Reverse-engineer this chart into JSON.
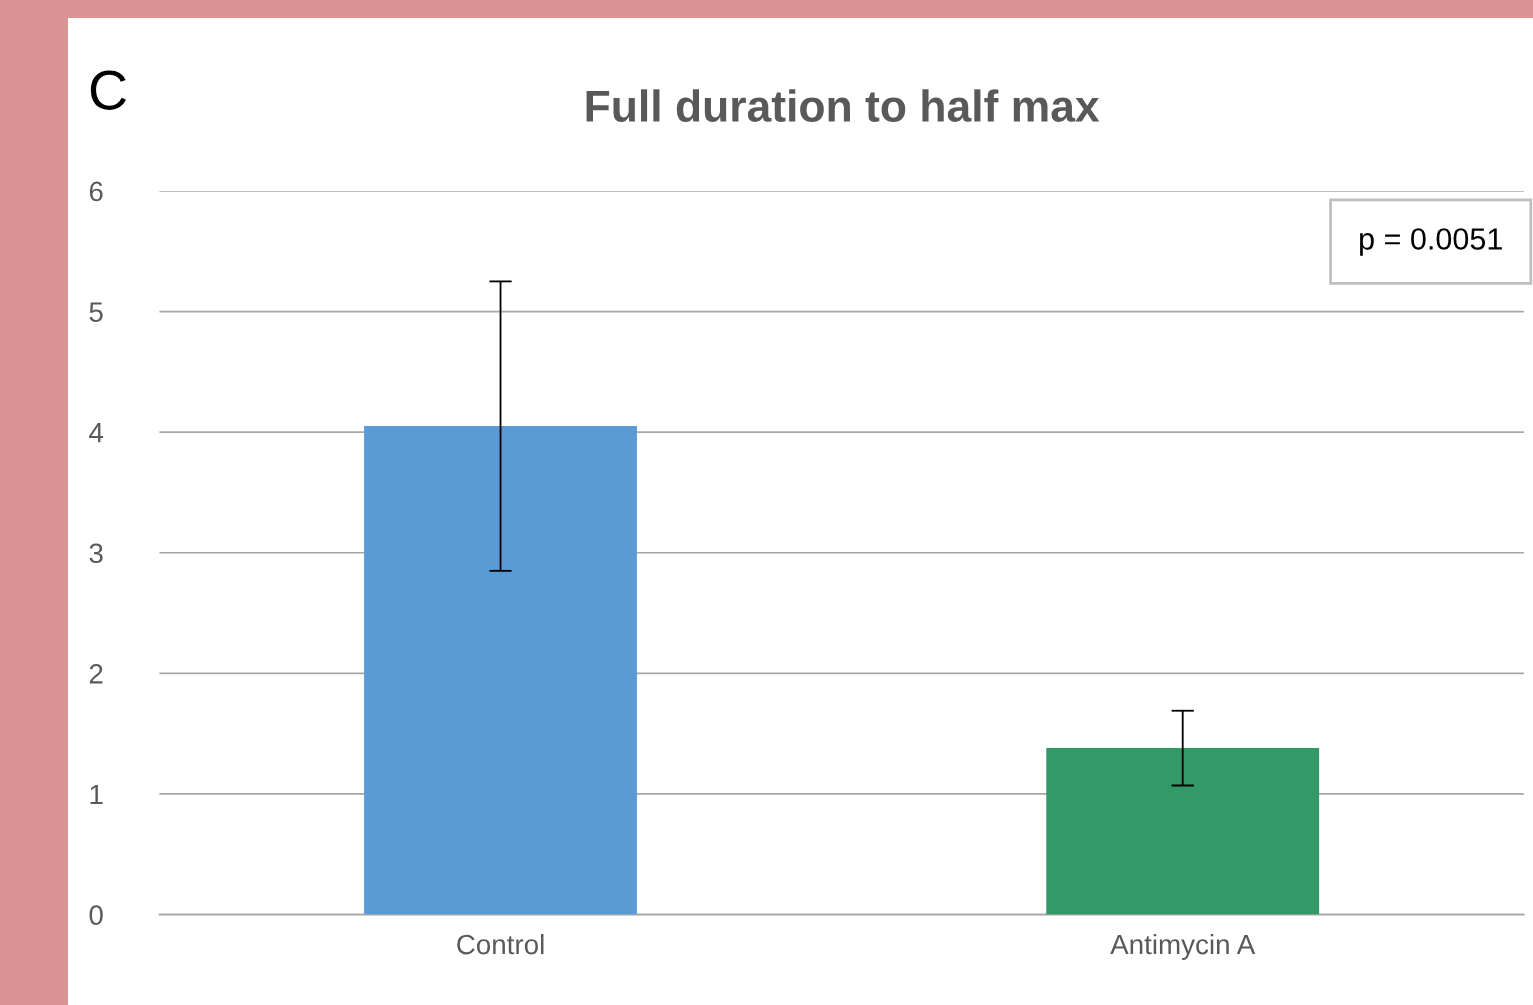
{
  "chart_data": {
    "type": "bar",
    "title": "Full duration to half max",
    "categories": [
      "Control",
      "Antimycin A"
    ],
    "values": [
      4.05,
      1.38
    ],
    "errors": [
      1.2,
      0.31
    ],
    "colors": [
      "#5b9bd5",
      "#339966"
    ],
    "ylim": [
      0,
      6
    ],
    "yticks": [
      0,
      1,
      2,
      3,
      4,
      5,
      6
    ],
    "grid": "y",
    "legend": false,
    "annotations": [
      "C",
      "p = 0.0051"
    ]
  }
}
